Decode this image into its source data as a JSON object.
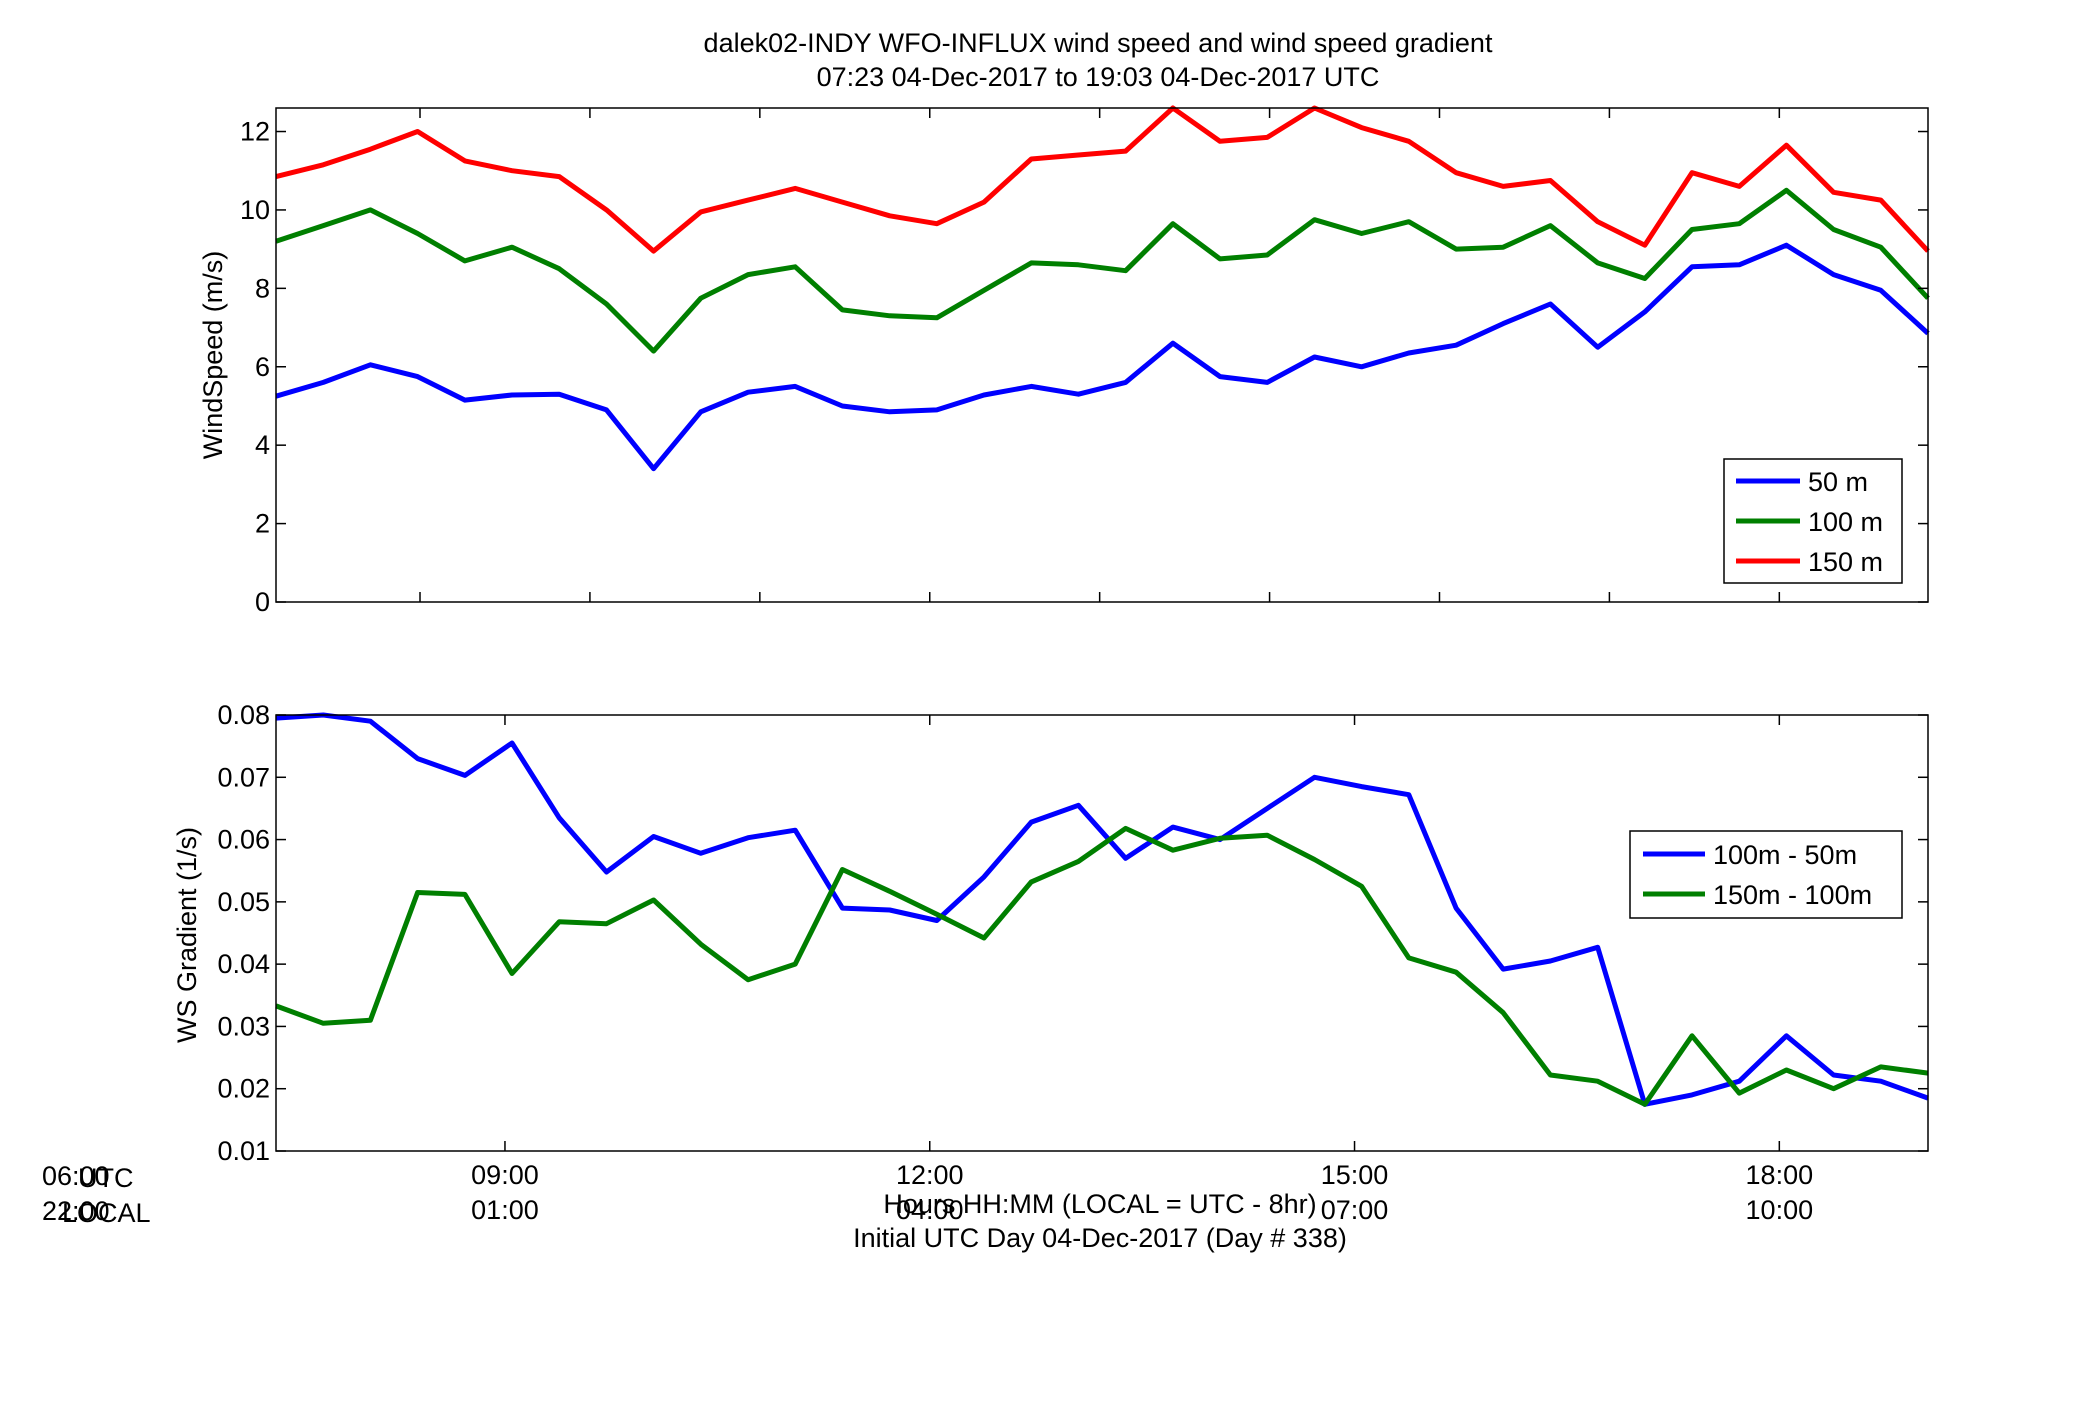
{
  "figure": {
    "title_line1": "dalek02-INDY WFO-INFLUX  wind speed and wind speed gradient",
    "title_line2": "07:23 04-Dec-2017 to 19:03 04-Dec-2017  UTC",
    "xlabel_line1": "Hours HH:MM  (LOCAL = UTC - 8hr)",
    "xlabel_line2": "Initial UTC Day 04-Dec-2017 (Day # 338)",
    "corner_utc_time": "06:00",
    "corner_utc_label": "UTC",
    "corner_local_time": "22:00",
    "corner_local_label": "LOCAL",
    "x_ticks_utc": [
      "09:00",
      "12:00",
      "15:00",
      "18:00"
    ],
    "x_ticks_local": [
      "01:00",
      "04:00",
      "07:00",
      "10:00"
    ]
  },
  "chart_data": [
    {
      "type": "line",
      "title": "dalek02-INDY WFO-INFLUX  wind speed and wind speed gradient",
      "ylabel": "WindSpeed (m/s)",
      "xlim": [
        7.383,
        19.05
      ],
      "ylim": [
        0,
        12.6
      ],
      "yticks": [
        "0",
        "2",
        "4",
        "6",
        "8",
        "10",
        "12"
      ],
      "ytick_values": [
        0,
        2,
        4,
        6,
        8,
        10,
        12
      ],
      "grid": false,
      "legend": "bottom-right",
      "x": [
        7.383,
        7.717,
        8.05,
        8.383,
        8.717,
        9.05,
        9.383,
        9.717,
        10.05,
        10.383,
        10.717,
        11.05,
        11.383,
        11.717,
        12.05,
        12.383,
        12.717,
        13.05,
        13.383,
        13.717,
        14.05,
        14.383,
        14.717,
        15.05,
        15.383,
        15.717,
        16.05,
        16.383,
        16.717,
        17.05,
        17.383,
        17.717,
        18.05,
        18.383,
        18.717,
        19.05
      ],
      "series": [
        {
          "name": "50 m",
          "color": "#0000ff",
          "values": [
            5.25,
            5.6,
            6.05,
            5.75,
            5.15,
            5.28,
            5.3,
            4.9,
            3.4,
            4.85,
            5.35,
            5.5,
            5.0,
            4.85,
            4.9,
            5.28,
            5.5,
            5.3,
            5.6,
            6.6,
            5.75,
            5.6,
            6.25,
            6.0,
            6.35,
            6.55,
            7.1,
            7.6,
            6.5,
            7.4,
            8.55,
            8.6,
            9.1,
            8.35,
            7.95,
            6.85
          ]
        },
        {
          "name": "100 m",
          "color": "#007f00",
          "values": [
            9.2,
            9.6,
            10.0,
            9.4,
            8.7,
            9.05,
            8.5,
            7.6,
            6.4,
            7.75,
            8.35,
            8.55,
            7.45,
            7.3,
            7.25,
            7.95,
            8.65,
            8.6,
            8.45,
            9.65,
            8.75,
            8.85,
            9.75,
            9.4,
            9.7,
            9.0,
            9.05,
            9.6,
            8.65,
            8.25,
            9.5,
            9.65,
            10.5,
            9.5,
            9.05,
            7.75
          ]
        },
        {
          "name": "150 m",
          "color": "#ff0000",
          "values": [
            10.85,
            11.15,
            11.55,
            12.0,
            11.25,
            11.0,
            10.85,
            10.0,
            8.95,
            9.95,
            10.25,
            10.55,
            10.2,
            9.85,
            9.65,
            10.2,
            11.3,
            11.4,
            11.5,
            12.6,
            11.75,
            11.85,
            12.6,
            12.1,
            11.75,
            10.95,
            10.6,
            10.75,
            9.7,
            9.1,
            10.95,
            10.6,
            11.65,
            10.45,
            10.25,
            8.95
          ]
        }
      ]
    },
    {
      "type": "line",
      "ylabel": "WS Gradient (1/s)",
      "xlim": [
        7.383,
        19.05
      ],
      "ylim": [
        0.01,
        0.08
      ],
      "yticks": [
        "0.01",
        "0.02",
        "0.03",
        "0.04",
        "0.05",
        "0.06",
        "0.07",
        "0.08"
      ],
      "ytick_values": [
        0.01,
        0.02,
        0.03,
        0.04,
        0.05,
        0.06,
        0.07,
        0.08
      ],
      "grid": false,
      "legend": "right",
      "x": [
        7.383,
        7.717,
        8.05,
        8.383,
        8.717,
        9.05,
        9.383,
        9.717,
        10.05,
        10.383,
        10.717,
        11.05,
        11.383,
        11.717,
        12.05,
        12.383,
        12.717,
        13.05,
        13.383,
        13.717,
        14.05,
        14.383,
        14.717,
        15.05,
        15.383,
        15.717,
        16.05,
        16.383,
        16.717,
        17.05,
        17.383,
        17.717,
        18.05,
        18.383,
        18.717,
        19.05
      ],
      "series": [
        {
          "name": "100m - 50m",
          "color": "#0000ff",
          "values": [
            0.0795,
            0.08,
            0.079,
            0.073,
            0.0703,
            0.0755,
            0.0635,
            0.0548,
            0.0605,
            0.0578,
            0.0603,
            0.0615,
            0.049,
            0.0487,
            0.047,
            0.054,
            0.0628,
            0.0655,
            0.057,
            0.062,
            0.06,
            0.065,
            0.07,
            0.0685,
            0.0672,
            0.049,
            0.0392,
            0.0405,
            0.0427,
            0.0175,
            0.019,
            0.0212,
            0.0285,
            0.0222,
            0.0212,
            0.0185
          ]
        },
        {
          "name": "150m - 100m",
          "color": "#007f00",
          "values": [
            0.0333,
            0.0305,
            0.031,
            0.0515,
            0.0512,
            0.0385,
            0.0468,
            0.0465,
            0.0503,
            0.0432,
            0.0375,
            0.04,
            0.0552,
            0.0517,
            0.048,
            0.0442,
            0.0532,
            0.0565,
            0.0618,
            0.0583,
            0.0602,
            0.0607,
            0.0568,
            0.0525,
            0.041,
            0.0387,
            0.0322,
            0.0222,
            0.0212,
            0.0175,
            0.0285,
            0.0193,
            0.023,
            0.02,
            0.0235,
            0.0225
          ]
        }
      ]
    }
  ]
}
